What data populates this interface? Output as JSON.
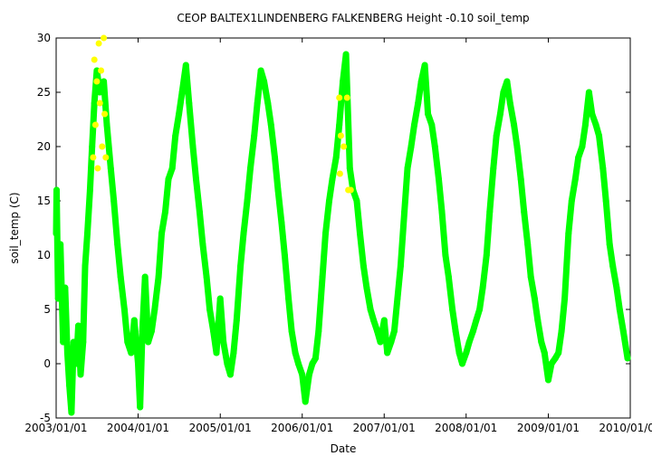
{
  "chart_data": {
    "type": "scatter",
    "title": "CEOP BALTEX1LINDENBERG FALKENBERG Height -0.10 soil_temp",
    "xlabel": "Date",
    "ylabel": "soil_temp (C)",
    "xlim": [
      "2003/01/01",
      "2010/01/01"
    ],
    "ylim": [
      -5,
      30
    ],
    "x_ticks": [
      "2003/01/01",
      "2004/01/01",
      "2005/01/01",
      "2006/01/01",
      "2007/01/01",
      "2008/01/01",
      "2009/01/01",
      "2010/01/01"
    ],
    "y_ticks": [
      -5,
      0,
      5,
      10,
      15,
      20,
      25,
      30
    ],
    "grid": false,
    "legend": "none",
    "series": [
      {
        "color": "#00ff00",
        "points": [
          [
            "2003/01/01",
            12
          ],
          [
            "2003/01/03",
            16
          ],
          [
            "2003/01/10",
            6
          ],
          [
            "2003/01/20",
            11
          ],
          [
            "2003/02/01",
            2
          ],
          [
            "2003/02/10",
            7
          ],
          [
            "2003/02/20",
            1
          ],
          [
            "2003/03/01",
            -2
          ],
          [
            "2003/03/10",
            -4.5
          ],
          [
            "2003/03/20",
            2
          ],
          [
            "2003/04/01",
            0
          ],
          [
            "2003/04/10",
            3.5
          ],
          [
            "2003/04/20",
            -1
          ],
          [
            "2003/05/01",
            2
          ],
          [
            "2003/05/10",
            9
          ],
          [
            "2003/05/20",
            12
          ],
          [
            "2003/06/01",
            16
          ],
          [
            "2003/06/10",
            20
          ],
          [
            "2003/06/20",
            24
          ],
          [
            "2003/07/01",
            27
          ],
          [
            "2003/07/15",
            25
          ],
          [
            "2003/08/01",
            26
          ],
          [
            "2003/08/15",
            22
          ],
          [
            "2003/09/01",
            18
          ],
          [
            "2003/09/15",
            15
          ],
          [
            "2003/10/01",
            11
          ],
          [
            "2003/10/15",
            8
          ],
          [
            "2003/11/01",
            5
          ],
          [
            "2003/11/15",
            2
          ],
          [
            "2003/12/01",
            1
          ],
          [
            "2003/12/15",
            4
          ],
          [
            "2004/01/01",
            0
          ],
          [
            "2004/01/10",
            -4
          ],
          [
            "2004/01/20",
            3
          ],
          [
            "2004/02/01",
            8
          ],
          [
            "2004/02/15",
            2
          ],
          [
            "2004/03/01",
            3
          ],
          [
            "2004/03/15",
            5
          ],
          [
            "2004/04/01",
            8
          ],
          [
            "2004/04/15",
            12
          ],
          [
            "2004/05/01",
            14
          ],
          [
            "2004/05/15",
            17
          ],
          [
            "2004/06/01",
            18
          ],
          [
            "2004/06/15",
            21
          ],
          [
            "2004/07/01",
            23
          ],
          [
            "2004/07/15",
            25
          ],
          [
            "2004/08/01",
            27.5
          ],
          [
            "2004/08/15",
            24
          ],
          [
            "2004/09/01",
            20
          ],
          [
            "2004/09/15",
            17
          ],
          [
            "2004/10/01",
            14
          ],
          [
            "2004/10/15",
            11
          ],
          [
            "2004/11/01",
            8
          ],
          [
            "2004/11/15",
            5
          ],
          [
            "2004/12/01",
            3
          ],
          [
            "2004/12/15",
            1
          ],
          [
            "2005/01/01",
            6
          ],
          [
            "2005/01/15",
            2
          ],
          [
            "2005/02/01",
            0
          ],
          [
            "2005/02/15",
            -1
          ],
          [
            "2005/03/01",
            1
          ],
          [
            "2005/03/15",
            4
          ],
          [
            "2005/04/01",
            9
          ],
          [
            "2005/04/15",
            12
          ],
          [
            "2005/05/01",
            15
          ],
          [
            "2005/05/15",
            18
          ],
          [
            "2005/06/01",
            21
          ],
          [
            "2005/06/15",
            24
          ],
          [
            "2005/07/01",
            27
          ],
          [
            "2005/07/15",
            26
          ],
          [
            "2005/08/01",
            24
          ],
          [
            "2005/08/15",
            22
          ],
          [
            "2005/09/01",
            19
          ],
          [
            "2005/09/15",
            16
          ],
          [
            "2005/10/01",
            13
          ],
          [
            "2005/10/15",
            10
          ],
          [
            "2005/11/01",
            6
          ],
          [
            "2005/11/15",
            3
          ],
          [
            "2005/12/01",
            1
          ],
          [
            "2005/12/15",
            0
          ],
          [
            "2006/01/01",
            -1
          ],
          [
            "2006/01/15",
            -3.5
          ],
          [
            "2006/02/01",
            -1
          ],
          [
            "2006/02/15",
            0
          ],
          [
            "2006/03/01",
            0.5
          ],
          [
            "2006/03/15",
            3
          ],
          [
            "2006/04/01",
            8
          ],
          [
            "2006/04/15",
            12
          ],
          [
            "2006/05/01",
            15
          ],
          [
            "2006/05/15",
            17
          ],
          [
            "2006/06/01",
            19
          ],
          [
            "2006/06/15",
            22
          ],
          [
            "2006/07/01",
            26
          ],
          [
            "2006/07/15",
            28.5
          ],
          [
            "2006/08/01",
            18
          ],
          [
            "2006/08/15",
            16
          ],
          [
            "2006/09/01",
            15
          ],
          [
            "2006/09/15",
            12
          ],
          [
            "2006/10/01",
            9
          ],
          [
            "2006/10/15",
            7
          ],
          [
            "2006/11/01",
            5
          ],
          [
            "2006/11/15",
            4
          ],
          [
            "2006/12/01",
            3
          ],
          [
            "2006/12/15",
            2
          ],
          [
            "2007/01/01",
            4
          ],
          [
            "2007/01/15",
            1
          ],
          [
            "2007/02/01",
            2
          ],
          [
            "2007/02/15",
            3
          ],
          [
            "2007/03/01",
            6
          ],
          [
            "2007/03/15",
            9
          ],
          [
            "2007/04/01",
            14
          ],
          [
            "2007/04/15",
            18
          ],
          [
            "2007/05/01",
            20
          ],
          [
            "2007/05/15",
            22
          ],
          [
            "2007/06/01",
            24
          ],
          [
            "2007/06/15",
            26
          ],
          [
            "2007/07/01",
            27.5
          ],
          [
            "2007/07/15",
            23
          ],
          [
            "2007/08/01",
            22
          ],
          [
            "2007/08/15",
            20
          ],
          [
            "2007/09/01",
            17
          ],
          [
            "2007/09/15",
            14
          ],
          [
            "2007/10/01",
            10
          ],
          [
            "2007/10/15",
            8
          ],
          [
            "2007/11/01",
            5
          ],
          [
            "2007/11/15",
            3
          ],
          [
            "2007/12/01",
            1
          ],
          [
            "2007/12/15",
            0
          ],
          [
            "2008/01/01",
            1
          ],
          [
            "2008/01/15",
            2
          ],
          [
            "2008/02/01",
            3
          ],
          [
            "2008/02/15",
            4
          ],
          [
            "2008/03/01",
            5
          ],
          [
            "2008/03/15",
            7
          ],
          [
            "2008/04/01",
            10
          ],
          [
            "2008/04/15",
            14
          ],
          [
            "2008/05/01",
            18
          ],
          [
            "2008/05/15",
            21
          ],
          [
            "2008/06/01",
            23
          ],
          [
            "2008/06/15",
            25
          ],
          [
            "2008/07/01",
            26
          ],
          [
            "2008/07/15",
            24
          ],
          [
            "2008/08/01",
            22
          ],
          [
            "2008/08/15",
            20
          ],
          [
            "2008/09/01",
            17
          ],
          [
            "2008/09/15",
            14
          ],
          [
            "2008/10/01",
            11
          ],
          [
            "2008/10/15",
            8
          ],
          [
            "2008/11/01",
            6
          ],
          [
            "2008/11/15",
            4
          ],
          [
            "2008/12/01",
            2
          ],
          [
            "2008/12/15",
            1
          ],
          [
            "2009/01/01",
            -1.5
          ],
          [
            "2009/01/15",
            0
          ],
          [
            "2009/02/01",
            0.5
          ],
          [
            "2009/02/15",
            1
          ],
          [
            "2009/03/01",
            3
          ],
          [
            "2009/03/15",
            6
          ],
          [
            "2009/04/01",
            12
          ],
          [
            "2009/04/15",
            15
          ],
          [
            "2009/05/01",
            17
          ],
          [
            "2009/05/15",
            19
          ],
          [
            "2009/06/01",
            20
          ],
          [
            "2009/06/15",
            22
          ],
          [
            "2009/07/01",
            25
          ],
          [
            "2009/07/15",
            23
          ],
          [
            "2009/08/01",
            22
          ],
          [
            "2009/08/15",
            21
          ],
          [
            "2009/09/01",
            18
          ],
          [
            "2009/09/15",
            15
          ],
          [
            "2009/10/01",
            11
          ],
          [
            "2009/10/15",
            9
          ],
          [
            "2009/11/01",
            7
          ],
          [
            "2009/11/15",
            5
          ],
          [
            "2009/12/01",
            3
          ],
          [
            "2009/12/20",
            0.5
          ]
        ]
      },
      {
        "color": "#ffff00",
        "points": [
          [
            "2003/06/15",
            19
          ],
          [
            "2003/06/20",
            28
          ],
          [
            "2003/06/25",
            22
          ],
          [
            "2003/07/01",
            26
          ],
          [
            "2003/07/05",
            18
          ],
          [
            "2003/07/10",
            29.5
          ],
          [
            "2003/07/15",
            24
          ],
          [
            "2003/07/20",
            27
          ],
          [
            "2003/07/25",
            20
          ],
          [
            "2003/08/01",
            30
          ],
          [
            "2003/08/05",
            23
          ],
          [
            "2003/08/10",
            19
          ],
          [
            "2006/06/15",
            24.5
          ],
          [
            "2006/06/18",
            17.5
          ],
          [
            "2006/06/22",
            21
          ],
          [
            "2006/07/05",
            20
          ],
          [
            "2006/07/20",
            24.5
          ],
          [
            "2006/07/25",
            16
          ],
          [
            "2006/08/05",
            16
          ]
        ]
      }
    ]
  }
}
